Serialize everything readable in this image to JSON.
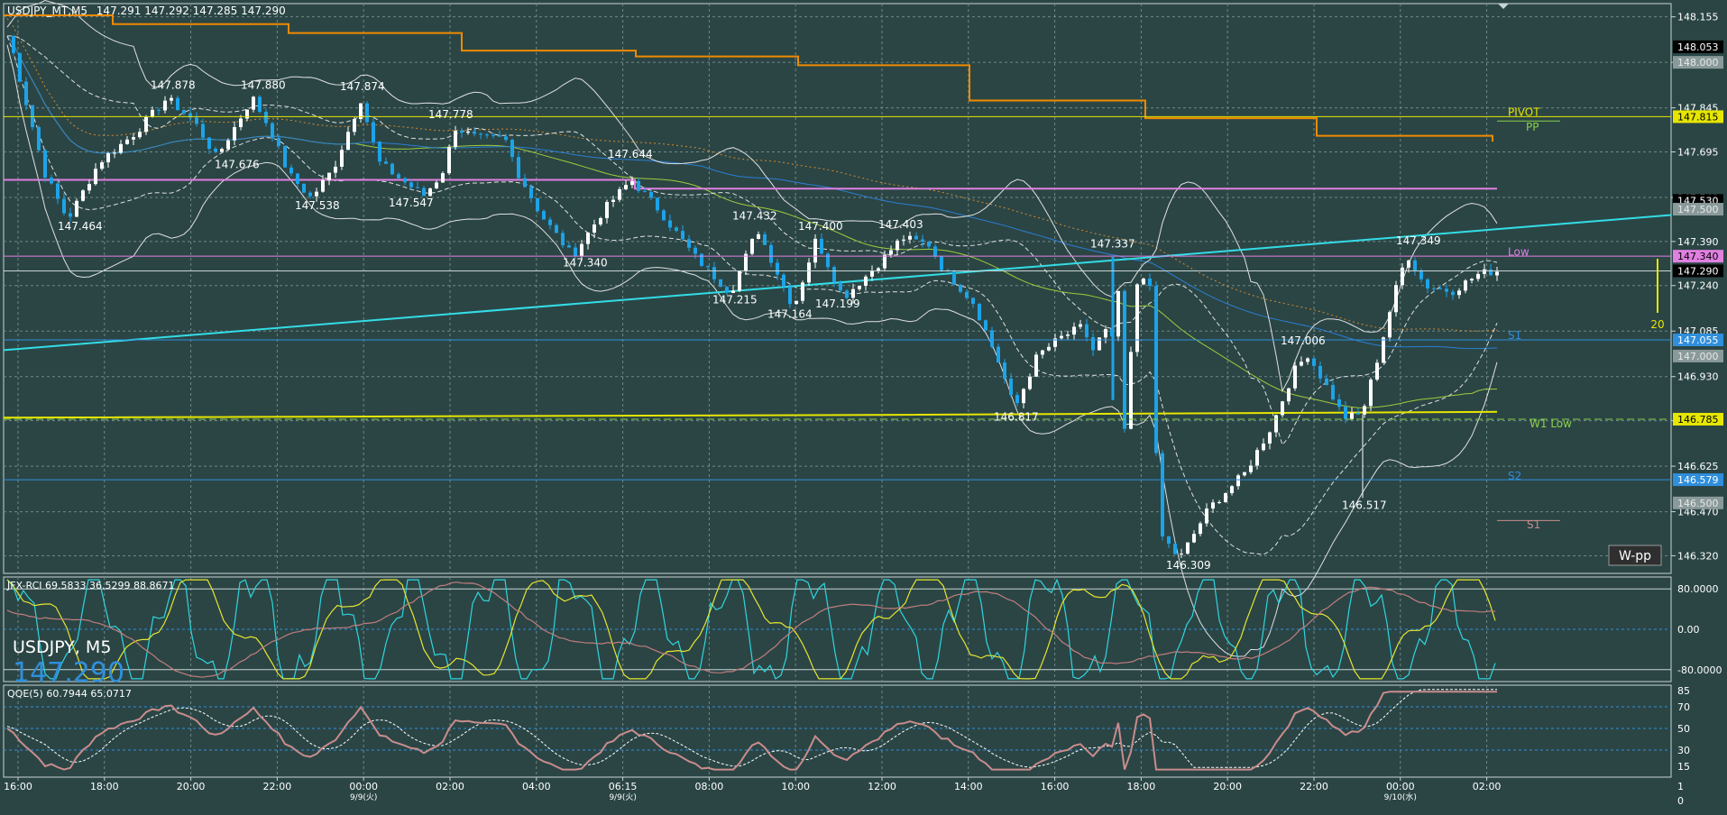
{
  "window": {
    "symbol_title": "USDJPY_MT,M5",
    "quote": "147.291 147.292 147.285 147.290",
    "symbol_big": "USDJPY, M5",
    "price_big": "147.290",
    "wpp_button": "W-pp",
    "range_label": "20"
  },
  "colors": {
    "background": "#2b4545",
    "grid": "#6f8787",
    "candle": "#1ca3e8",
    "candle_up": "#ffffff",
    "trend": "#33dde6",
    "upper_step": "#f08a00",
    "magenta": "#e080e0",
    "yellow": "#e6e600",
    "blue_level": "#2f8fdc",
    "bollinger": "#e0e0e0",
    "ma_green": "#9fcc3a",
    "ma_blue": "#2a7fd4",
    "ma_dotted": "#d68a2a",
    "rci_fast": "#2fd6de",
    "rci_mid": "#e6e62e",
    "rci_slow": "#c27d7d",
    "qde_main": "#c98c8c",
    "qde_signal": "#ffffff"
  },
  "chart_data": {
    "type": "candlestick",
    "symbol": "USDJPY",
    "timeframe": "M5",
    "price_axis": {
      "ylim": [
        146.26,
        148.2
      ],
      "ticks": [
        148.155,
        148.0,
        147.845,
        147.695,
        147.54,
        147.39,
        147.24,
        147.085,
        146.93,
        146.78,
        146.625,
        146.47,
        146.32
      ]
    },
    "time_axis": {
      "ticks": [
        "16:00",
        "18:00",
        "20:00",
        "22:00",
        "00:00",
        "02:00",
        "04:00",
        "06:15",
        "08:00",
        "10:00",
        "12:00",
        "14:00",
        "16:00",
        "18:00",
        "20:00",
        "22:00",
        "00:00",
        "02:00"
      ],
      "date_labels": [
        "9/9(火)",
        "9/9(火)",
        "9/10(水)"
      ]
    },
    "price_labels": [
      {
        "value": "148.053",
        "style": "black"
      },
      {
        "value": "148.000",
        "style": "gray"
      },
      {
        "value": "147.815",
        "style": "yellow"
      },
      {
        "value": "147.530",
        "style": "black"
      },
      {
        "value": "147.500",
        "style": "gray"
      },
      {
        "value": "147.340",
        "style": "magenta"
      },
      {
        "value": "147.290",
        "style": "black"
      },
      {
        "value": "147.055",
        "style": "blue"
      },
      {
        "value": "147.000",
        "style": "gray"
      },
      {
        "value": "146.785",
        "style": "yellow"
      },
      {
        "value": "146.579",
        "style": "blue"
      },
      {
        "value": "146.500",
        "style": "gray"
      }
    ],
    "levels": [
      {
        "name": "PIVOT",
        "value": 147.815,
        "color": "yellow"
      },
      {
        "name": "PP",
        "value": 147.8,
        "color": "green"
      },
      {
        "name": "Low",
        "value": 147.34,
        "color": "magenta"
      },
      {
        "name": "S1",
        "value": 147.055,
        "color": "blue"
      },
      {
        "name": "W1 Low",
        "value": 146.785,
        "color": "green"
      },
      {
        "name": "S2",
        "value": 146.579,
        "color": "blue"
      },
      {
        "name": "S1",
        "value": 146.44,
        "color": "rose"
      }
    ],
    "swing_labels": [
      "147.464",
      "147.878",
      "147.880",
      "147.676",
      "147.874",
      "147.538",
      "147.778",
      "147.547",
      "147.644",
      "147.340",
      "147.432",
      "147.215",
      "147.400",
      "147.164",
      "147.199",
      "147.403",
      "147.337",
      "146.817",
      "146.309",
      "147.006",
      "146.517",
      "147.349"
    ],
    "sub_charts": [
      {
        "name": "JFX-RCI",
        "header": "JFX-RCI 69.5833 36.5299 88.8671",
        "ticks": [
          "80.0000",
          "0.00",
          "-80.0000"
        ]
      },
      {
        "name": "QQE(5)",
        "header": "QQE(5) 60.7944 65.0717",
        "ticks": [
          "85",
          "70",
          "50",
          "30",
          "15"
        ]
      },
      {
        "name": "axis-extra",
        "ticks": [
          "1",
          "0"
        ]
      }
    ]
  }
}
